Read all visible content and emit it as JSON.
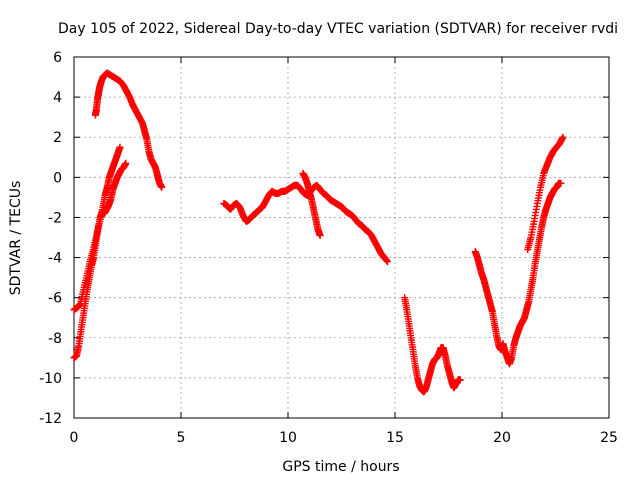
{
  "chart_data": {
    "type": "scatter",
    "title": "Day 105 of 2022, Sidereal Day-to-day VTEC variation (SDTVAR) for receiver rvdi",
    "xlabel": "GPS time / hours",
    "ylabel": "SDTVAR / TECUs",
    "xlim": [
      0,
      25
    ],
    "ylim": [
      -12,
      6
    ],
    "x_ticks": [
      0,
      5,
      10,
      15,
      20,
      25
    ],
    "y_ticks": [
      -12,
      -10,
      -8,
      -6,
      -4,
      -2,
      0,
      2,
      4,
      6
    ],
    "grid": true,
    "marker": "plus",
    "marker_color": "#ff0000",
    "series": [
      {
        "points": [
          [
            0.0,
            -6.6
          ],
          [
            0.15,
            -6.5
          ],
          [
            0.3,
            -6.3
          ],
          [
            0.45,
            -5.6
          ],
          [
            0.6,
            -4.9
          ],
          [
            0.75,
            -4.2
          ],
          [
            0.9,
            -3.6
          ],
          [
            1.05,
            -2.9
          ],
          [
            1.2,
            -2.2
          ],
          [
            1.35,
            -1.5
          ],
          [
            1.45,
            -0.9
          ],
          [
            1.55,
            -0.5
          ],
          [
            1.65,
            0.0
          ],
          [
            1.75,
            0.3
          ],
          [
            1.85,
            0.6
          ],
          [
            1.95,
            0.9
          ],
          [
            2.05,
            1.2
          ],
          [
            2.15,
            1.5
          ]
        ]
      },
      {
        "points": [
          [
            0.0,
            -9.0
          ],
          [
            0.12,
            -8.9
          ],
          [
            0.22,
            -8.4
          ],
          [
            0.32,
            -7.7
          ],
          [
            0.42,
            -7.0
          ],
          [
            0.52,
            -6.3
          ],
          [
            0.62,
            -5.6
          ],
          [
            0.72,
            -5.0
          ],
          [
            0.82,
            -4.4
          ],
          [
            0.92,
            -4.0
          ],
          [
            1.02,
            -3.3
          ],
          [
            1.12,
            -2.6
          ],
          [
            1.22,
            -2.0
          ],
          [
            1.32,
            -1.7
          ],
          [
            1.42,
            -1.8
          ],
          [
            1.52,
            -1.6
          ],
          [
            1.62,
            -1.4
          ],
          [
            1.72,
            -1.1
          ],
          [
            1.82,
            -0.6
          ],
          [
            1.92,
            -0.3
          ],
          [
            2.02,
            0.0
          ],
          [
            2.12,
            0.2
          ],
          [
            2.22,
            0.4
          ],
          [
            2.32,
            0.5
          ],
          [
            2.42,
            0.7
          ]
        ]
      },
      {
        "points": [
          [
            1.0,
            3.1
          ],
          [
            1.05,
            3.4
          ],
          [
            1.1,
            3.9
          ],
          [
            1.15,
            4.2
          ],
          [
            1.2,
            4.5
          ],
          [
            1.28,
            4.8
          ],
          [
            1.36,
            5.0
          ],
          [
            1.45,
            5.1
          ],
          [
            1.55,
            5.2
          ],
          [
            1.7,
            5.1
          ],
          [
            1.85,
            5.0
          ],
          [
            2.0,
            4.9
          ],
          [
            2.15,
            4.8
          ],
          [
            2.3,
            4.6
          ],
          [
            2.45,
            4.3
          ],
          [
            2.6,
            4.0
          ],
          [
            2.75,
            3.6
          ],
          [
            2.9,
            3.3
          ],
          [
            3.05,
            3.0
          ],
          [
            3.2,
            2.7
          ],
          [
            3.3,
            2.3
          ],
          [
            3.4,
            1.9
          ],
          [
            3.5,
            1.3
          ],
          [
            3.6,
            0.9
          ],
          [
            3.7,
            0.7
          ],
          [
            3.8,
            0.5
          ],
          [
            3.9,
            0.1
          ],
          [
            4.0,
            -0.3
          ],
          [
            4.1,
            -0.5
          ]
        ]
      },
      {
        "points": [
          [
            7.0,
            -1.3
          ],
          [
            7.15,
            -1.4
          ],
          [
            7.3,
            -1.6
          ],
          [
            7.45,
            -1.4
          ],
          [
            7.6,
            -1.3
          ],
          [
            7.75,
            -1.5
          ],
          [
            7.9,
            -1.9
          ],
          [
            8.05,
            -2.2
          ],
          [
            8.2,
            -2.1
          ],
          [
            8.35,
            -1.9
          ],
          [
            8.5,
            -1.8
          ],
          [
            8.65,
            -1.6
          ],
          [
            8.8,
            -1.5
          ],
          [
            8.95,
            -1.2
          ],
          [
            9.1,
            -0.9
          ],
          [
            9.25,
            -0.7
          ],
          [
            9.4,
            -0.8
          ],
          [
            9.55,
            -0.8
          ],
          [
            9.7,
            -0.7
          ],
          [
            9.85,
            -0.7
          ],
          [
            10.0,
            -0.6
          ],
          [
            10.15,
            -0.5
          ],
          [
            10.3,
            -0.4
          ],
          [
            10.45,
            -0.4
          ],
          [
            10.6,
            -0.6
          ],
          [
            10.75,
            -0.8
          ],
          [
            10.9,
            -0.9
          ],
          [
            11.05,
            -0.7
          ],
          [
            11.2,
            -0.5
          ],
          [
            11.35,
            -0.4
          ],
          [
            11.5,
            -0.6
          ],
          [
            11.65,
            -0.8
          ],
          [
            11.8,
            -0.9
          ],
          [
            11.95,
            -1.1
          ],
          [
            12.1,
            -1.2
          ],
          [
            12.25,
            -1.3
          ],
          [
            12.4,
            -1.4
          ],
          [
            12.55,
            -1.5
          ],
          [
            12.7,
            -1.7
          ],
          [
            12.85,
            -1.8
          ],
          [
            13.0,
            -1.9
          ],
          [
            13.15,
            -2.1
          ],
          [
            13.3,
            -2.3
          ],
          [
            13.45,
            -2.4
          ],
          [
            13.6,
            -2.6
          ],
          [
            13.75,
            -2.7
          ],
          [
            13.9,
            -2.9
          ],
          [
            14.05,
            -3.2
          ],
          [
            14.2,
            -3.5
          ],
          [
            14.35,
            -3.8
          ],
          [
            14.5,
            -4.0
          ],
          [
            14.65,
            -4.2
          ]
        ]
      },
      {
        "points": [
          [
            10.7,
            0.2
          ],
          [
            10.8,
            0.0
          ],
          [
            10.9,
            -0.3
          ],
          [
            11.0,
            -0.7
          ],
          [
            11.1,
            -1.1
          ],
          [
            11.2,
            -1.6
          ],
          [
            11.3,
            -2.1
          ],
          [
            11.4,
            -2.6
          ],
          [
            11.5,
            -2.9
          ]
        ]
      },
      {
        "points": [
          [
            15.45,
            -6.0
          ],
          [
            15.55,
            -6.6
          ],
          [
            15.65,
            -7.3
          ],
          [
            15.75,
            -8.0
          ],
          [
            15.85,
            -8.7
          ],
          [
            15.95,
            -9.4
          ],
          [
            16.05,
            -10.0
          ],
          [
            16.15,
            -10.4
          ],
          [
            16.25,
            -10.6
          ],
          [
            16.35,
            -10.7
          ],
          [
            16.45,
            -10.5
          ],
          [
            16.55,
            -10.1
          ],
          [
            16.65,
            -9.7
          ],
          [
            16.75,
            -9.3
          ],
          [
            16.85,
            -9.1
          ],
          [
            16.95,
            -9.0
          ],
          [
            17.05,
            -8.8
          ],
          [
            17.15,
            -8.5
          ],
          [
            17.25,
            -8.5
          ],
          [
            17.35,
            -8.9
          ],
          [
            17.45,
            -9.4
          ],
          [
            17.55,
            -9.8
          ],
          [
            17.65,
            -10.2
          ],
          [
            17.75,
            -10.5
          ],
          [
            17.85,
            -10.3
          ],
          [
            17.95,
            -10.1
          ],
          [
            18.05,
            -10.1
          ]
        ]
      },
      {
        "points": [
          [
            18.75,
            -3.7
          ],
          [
            18.85,
            -4.0
          ],
          [
            18.95,
            -4.4
          ],
          [
            19.05,
            -4.8
          ],
          [
            19.15,
            -5.1
          ],
          [
            19.25,
            -5.5
          ],
          [
            19.35,
            -5.9
          ],
          [
            19.45,
            -6.3
          ],
          [
            19.55,
            -6.7
          ],
          [
            19.65,
            -7.3
          ],
          [
            19.75,
            -7.9
          ],
          [
            19.85,
            -8.4
          ],
          [
            19.95,
            -8.6
          ],
          [
            20.05,
            -8.3
          ],
          [
            20.15,
            -8.7
          ],
          [
            20.25,
            -9.0
          ],
          [
            20.35,
            -9.3
          ],
          [
            20.45,
            -9.0
          ],
          [
            20.55,
            -8.4
          ],
          [
            20.65,
            -8.0
          ],
          [
            20.75,
            -7.7
          ],
          [
            20.85,
            -7.4
          ],
          [
            20.95,
            -7.2
          ],
          [
            21.05,
            -7.0
          ],
          [
            21.15,
            -6.6
          ],
          [
            21.25,
            -6.2
          ],
          [
            21.35,
            -5.6
          ],
          [
            21.45,
            -5.0
          ],
          [
            21.55,
            -4.3
          ],
          [
            21.65,
            -3.7
          ],
          [
            21.75,
            -3.1
          ],
          [
            21.85,
            -2.5
          ],
          [
            21.95,
            -2.0
          ],
          [
            22.05,
            -1.6
          ],
          [
            22.15,
            -1.3
          ],
          [
            22.25,
            -1.0
          ],
          [
            22.35,
            -0.8
          ],
          [
            22.45,
            -0.6
          ],
          [
            22.55,
            -0.5
          ],
          [
            22.65,
            -0.3
          ],
          [
            22.75,
            -0.3
          ]
        ]
      },
      {
        "points": [
          [
            21.2,
            -3.6
          ],
          [
            21.35,
            -3.0
          ],
          [
            21.5,
            -2.2
          ],
          [
            21.65,
            -1.3
          ],
          [
            21.8,
            -0.5
          ],
          [
            21.95,
            0.2
          ],
          [
            22.1,
            0.6
          ],
          [
            22.25,
            1.0
          ],
          [
            22.4,
            1.3
          ],
          [
            22.55,
            1.5
          ],
          [
            22.7,
            1.7
          ],
          [
            22.85,
            2.0
          ]
        ]
      }
    ]
  }
}
